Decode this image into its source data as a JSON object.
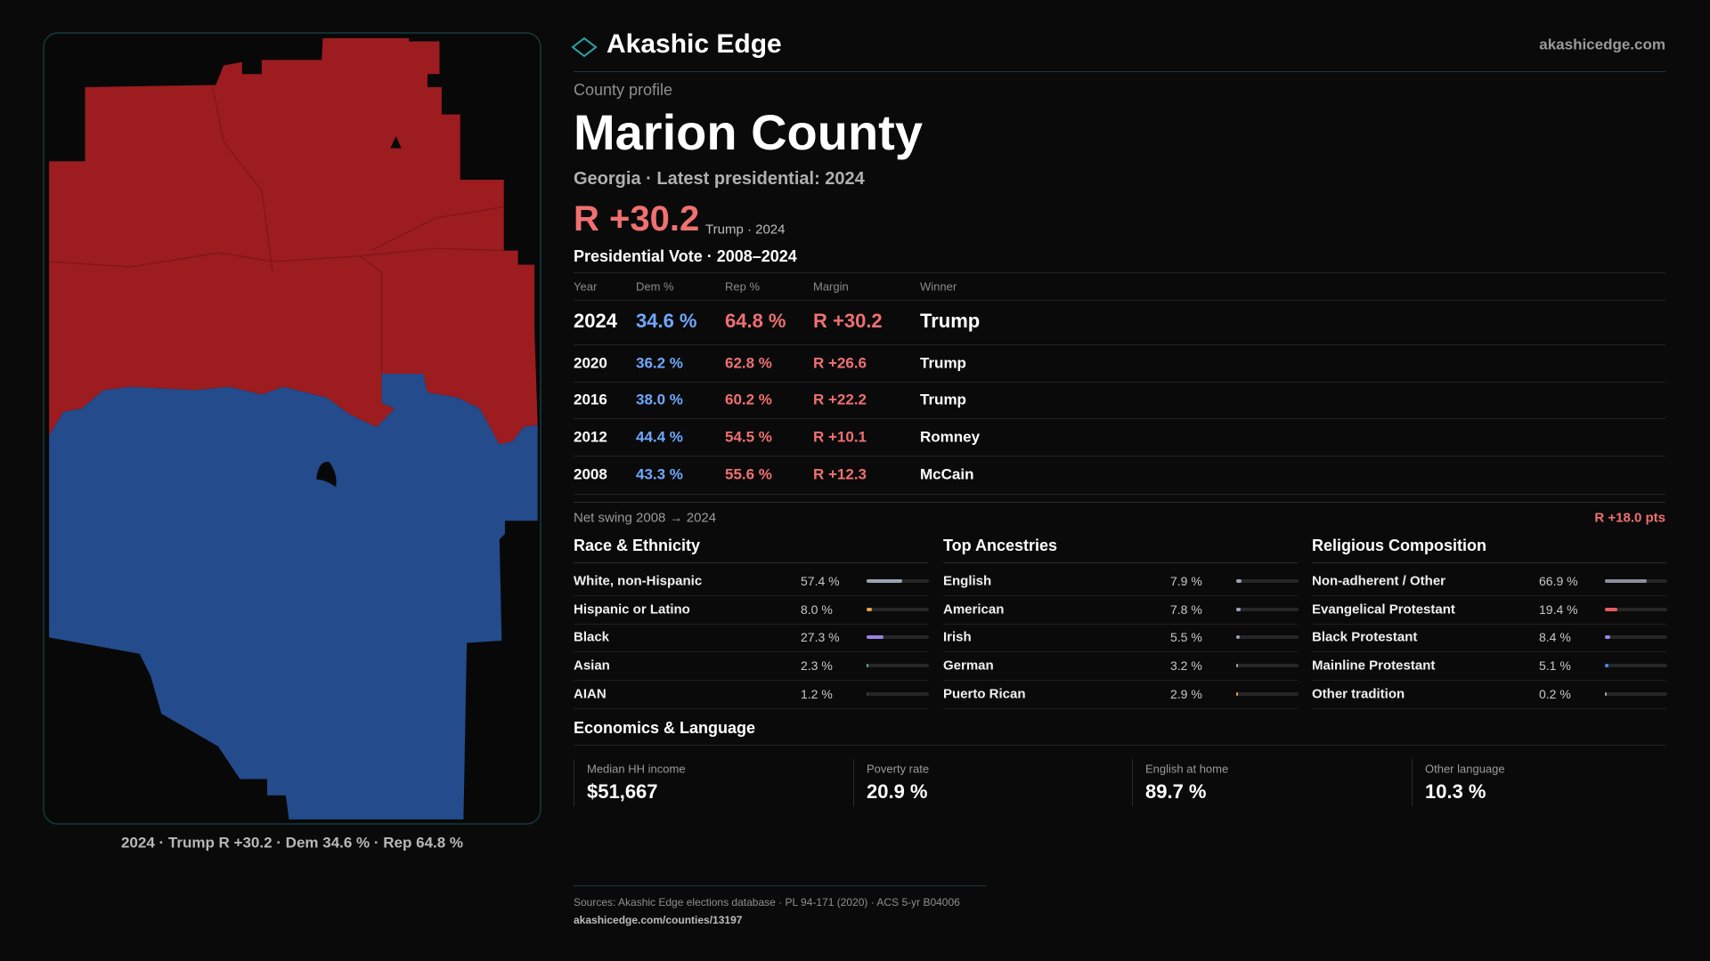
{
  "header": {
    "brand": "Akashic Edge",
    "site": "akashicedge.com"
  },
  "map": {
    "caption": "2024 · Trump R +30.2 · Dem 34.6 % · Rep 64.8 %"
  },
  "profile": {
    "kicker": "County profile",
    "name": "Marion County",
    "subtitle": "Georgia · Latest presidential: 2024",
    "margin": "R +30.2",
    "margin_note": "Trump · 2024"
  },
  "votes": {
    "title": "Presidential Vote · 2008–2024",
    "columns": [
      "Year",
      "Dem %",
      "Rep %",
      "Margin",
      "Winner"
    ],
    "rows": [
      [
        "2024",
        "34.6 %",
        "64.8 %",
        "R +30.2",
        "Trump"
      ],
      [
        "2020",
        "36.2 %",
        "62.8 %",
        "R +26.6",
        "Trump"
      ],
      [
        "2016",
        "38.0 %",
        "60.2 %",
        "R +22.2",
        "Trump"
      ],
      [
        "2012",
        "44.4 %",
        "54.5 %",
        "R +10.1",
        "Romney"
      ],
      [
        "2008",
        "43.3 %",
        "55.6 %",
        "R +12.3",
        "McCain"
      ]
    ],
    "swing_label": "Net swing 2008 → 2024",
    "swing": "R +18.0 pts"
  },
  "demographics": [
    {
      "title": "Race & Ethnicity",
      "rows": [
        {
          "name": "White, non-Hispanic",
          "share": {
            "value": 57.4,
            "label": "57.4 %"
          },
          "color": "#9aa3b5"
        },
        {
          "name": "Hispanic or Latino",
          "share": {
            "value": 8.0,
            "label": "8.0 %"
          },
          "color": "#e8a040"
        },
        {
          "name": "Black",
          "share": {
            "value": 27.3,
            "label": "27.3 %"
          },
          "color": "#9a82e6"
        },
        {
          "name": "Asian",
          "share": {
            "value": 2.3,
            "label": "2.3 %"
          },
          "color": "#3fb585"
        },
        {
          "name": "AIAN",
          "share": {
            "value": 1.2,
            "label": "1.2 %"
          },
          "color": "#3a3a3a"
        }
      ]
    },
    {
      "title": "Top Ancestries",
      "rows": [
        {
          "name": "English",
          "share": {
            "value": 7.9,
            "label": "7.9 %"
          },
          "color": "#9aa3b5"
        },
        {
          "name": "American",
          "share": {
            "value": 7.8,
            "label": "7.8 %"
          },
          "color": "#9aa3b5"
        },
        {
          "name": "Irish",
          "share": {
            "value": 5.5,
            "label": "5.5 %"
          },
          "color": "#9aa3b5"
        },
        {
          "name": "German",
          "share": {
            "value": 3.2,
            "label": "3.2 %"
          },
          "color": "#9aa3b5"
        },
        {
          "name": "Puerto Rican",
          "share": {
            "value": 2.9,
            "label": "2.9 %"
          },
          "color": "#e8a040"
        }
      ]
    },
    {
      "title": "Religious Composition",
      "rows": [
        {
          "name": "Non-adherent / Other",
          "share": {
            "value": 66.9,
            "label": "66.9 %"
          },
          "color": "#8a8f9a"
        },
        {
          "name": "Evangelical Protestant",
          "share": {
            "value": 19.4,
            "label": "19.4 %"
          },
          "color": "#e65c5c"
        },
        {
          "name": "Black Protestant",
          "share": {
            "value": 8.4,
            "label": "8.4 %"
          },
          "color": "#9a82e6"
        },
        {
          "name": "Mainline Protestant",
          "share": {
            "value": 5.1,
            "label": "5.1 %"
          },
          "color": "#4a8ae8"
        },
        {
          "name": "Other tradition",
          "share": {
            "value": 0.2,
            "label": "0.2 %"
          },
          "color": "#9aa3b5"
        }
      ]
    }
  ],
  "economics": {
    "title": "Economics & Language",
    "cards": [
      {
        "label": "Median HH income",
        "value": "$51,667"
      },
      {
        "label": "Poverty rate",
        "value": "20.9 %"
      },
      {
        "label": "English at home",
        "value": "89.7 %"
      },
      {
        "label": "Other language",
        "value": "10.3 %"
      }
    ]
  },
  "footer": {
    "sources": "Sources: Akashic Edge elections database · PL 94-171 (2020) · ACS 5-yr B04006",
    "url": "akashicedge.com/counties/13197"
  }
}
